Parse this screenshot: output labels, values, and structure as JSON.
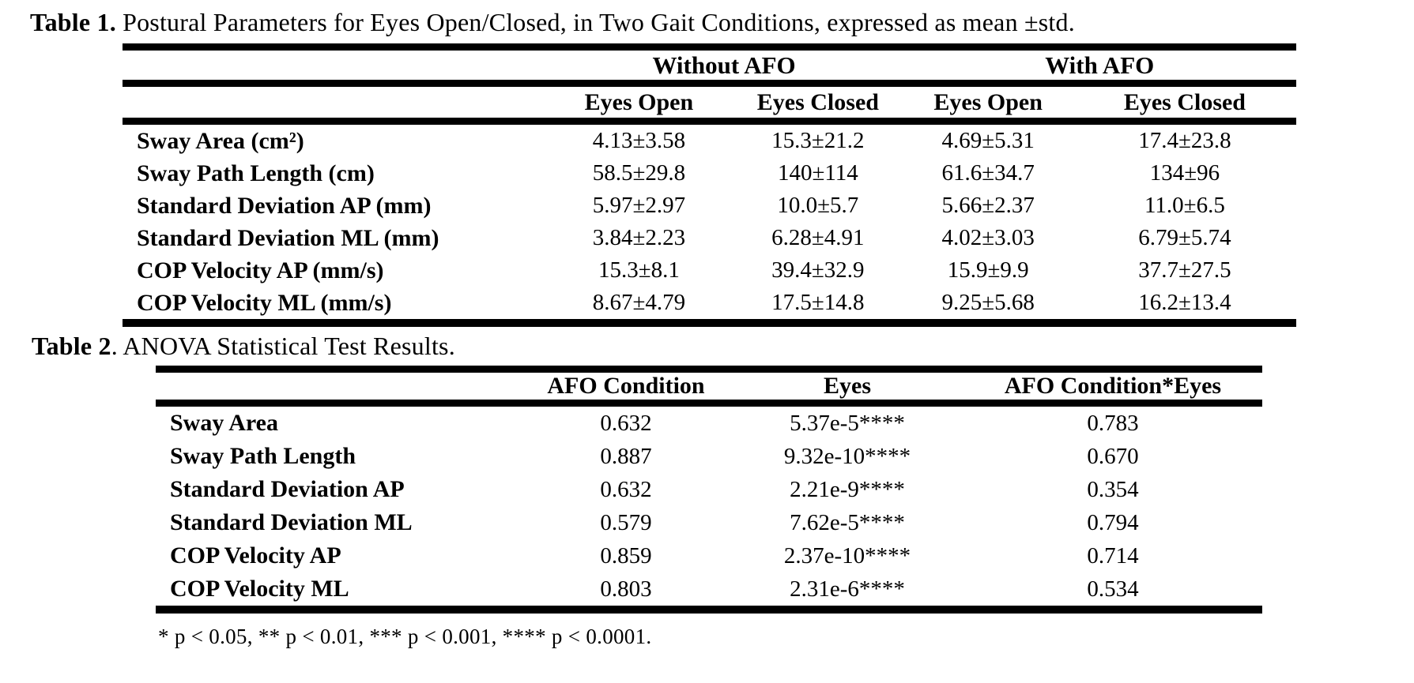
{
  "page": {
    "background": "#ffffff",
    "text_color": "#000000",
    "rule_color": "#000000"
  },
  "table1": {
    "caption_label": "Table 1.",
    "caption_text": " Postural Parameters for Eyes Open/Closed, in Two Gait Conditions, expressed as mean ±std.",
    "group_headers": [
      "Without AFO",
      "With AFO"
    ],
    "col_headers": [
      "Eyes Open",
      "Eyes Closed",
      "Eyes Open",
      "Eyes Closed"
    ],
    "rows": [
      {
        "label": "Sway Area (cm²)",
        "values": [
          "4.13±3.58",
          "15.3±21.2",
          "4.69±5.31",
          "17.4±23.8"
        ]
      },
      {
        "label": "Sway Path Length (cm)",
        "values": [
          "58.5±29.8",
          "140±114",
          "61.6±34.7",
          "134±96"
        ]
      },
      {
        "label": "Standard Deviation AP (mm)",
        "values": [
          "5.97±2.97",
          "10.0±5.7",
          "5.66±2.37",
          "11.0±6.5"
        ]
      },
      {
        "label": "Standard Deviation ML (mm)",
        "values": [
          "3.84±2.23",
          "6.28±4.91",
          "4.02±3.03",
          "6.79±5.74"
        ]
      },
      {
        "label": "COP Velocity AP (mm/s)",
        "values": [
          "15.3±8.1",
          "39.4±32.9",
          "15.9±9.9",
          "37.7±27.5"
        ]
      },
      {
        "label": "COP Velocity ML (mm/s)",
        "values": [
          "8.67±4.79",
          "17.5±14.8",
          "9.25±5.68",
          "16.2±13.4"
        ]
      }
    ]
  },
  "table2": {
    "caption_label": "Table 2",
    "caption_text": ". ANOVA Statistical Test Results.",
    "col_headers": [
      "AFO Condition",
      "Eyes",
      "AFO Condition*Eyes"
    ],
    "rows": [
      {
        "label": "Sway Area",
        "values": [
          "0.632",
          "5.37e-5****",
          "0.783"
        ]
      },
      {
        "label": "Sway Path Length",
        "values": [
          "0.887",
          "9.32e-10****",
          "0.670"
        ]
      },
      {
        "label": "Standard Deviation AP",
        "values": [
          "0.632",
          "2.21e-9****",
          "0.354"
        ]
      },
      {
        "label": "Standard Deviation ML",
        "values": [
          "0.579",
          "7.62e-5****",
          "0.794"
        ]
      },
      {
        "label": "COP Velocity AP",
        "values": [
          "0.859",
          "2.37e-10****",
          "0.714"
        ]
      },
      {
        "label": "COP Velocity ML",
        "values": [
          "0.803",
          "2.31e-6****",
          "0.534"
        ]
      }
    ],
    "footnote": "* p < 0.05, ** p < 0.01, *** p < 0.001, **** p < 0.0001."
  }
}
